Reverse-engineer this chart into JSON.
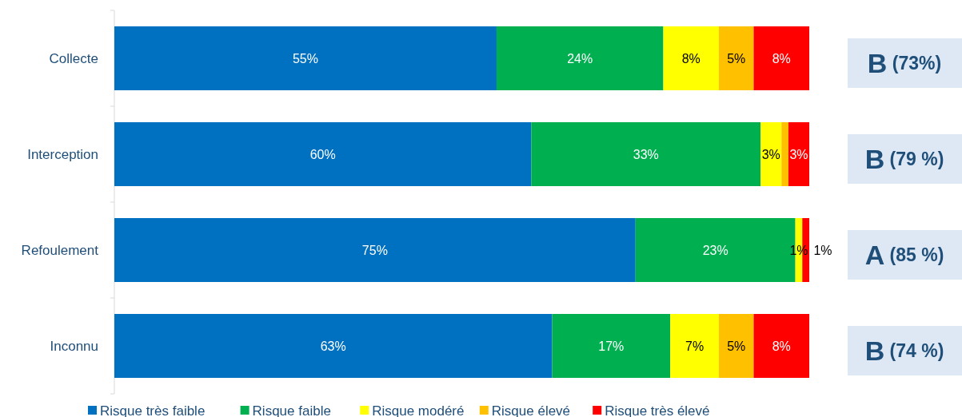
{
  "chart_data": {
    "type": "bar",
    "orientation": "horizontal",
    "stacked": true,
    "categories": [
      "Collecte",
      "Interception",
      "Refoulement",
      "Inconnu"
    ],
    "xlim": [
      0,
      100
    ],
    "tick_labels": "y",
    "legend": "bottom",
    "series": [
      {
        "name": "Risque très faible",
        "color": "#0070c0",
        "values": [
          55,
          60,
          75,
          63
        ],
        "value_labels": [
          "55%",
          "60%",
          "75%",
          "63%"
        ]
      },
      {
        "name": "Risque faible",
        "color": "#00b050",
        "values": [
          24,
          33,
          23,
          17
        ],
        "value_labels": [
          "24%",
          "33%",
          "23%",
          "17%"
        ]
      },
      {
        "name": "Risque modéré",
        "color": "#ffff00",
        "values": [
          8,
          3,
          1,
          7
        ],
        "value_labels": [
          "8%",
          "3%",
          "1%",
          "7%"
        ]
      },
      {
        "name": "Risque élevé",
        "color": "#ffc000",
        "values": [
          5,
          1,
          null,
          5
        ],
        "value_labels": [
          "5%",
          null,
          null,
          "5%"
        ]
      },
      {
        "name": "Risque très élevé",
        "color": "#ff0000",
        "values": [
          8,
          3,
          1,
          8
        ],
        "value_labels": [
          "8%",
          "3%",
          "1%",
          "8%"
        ]
      }
    ],
    "annotations": [
      "B (73%)",
      "B (79 %)",
      "A (85 %)",
      "B (74 %)"
    ]
  }
}
